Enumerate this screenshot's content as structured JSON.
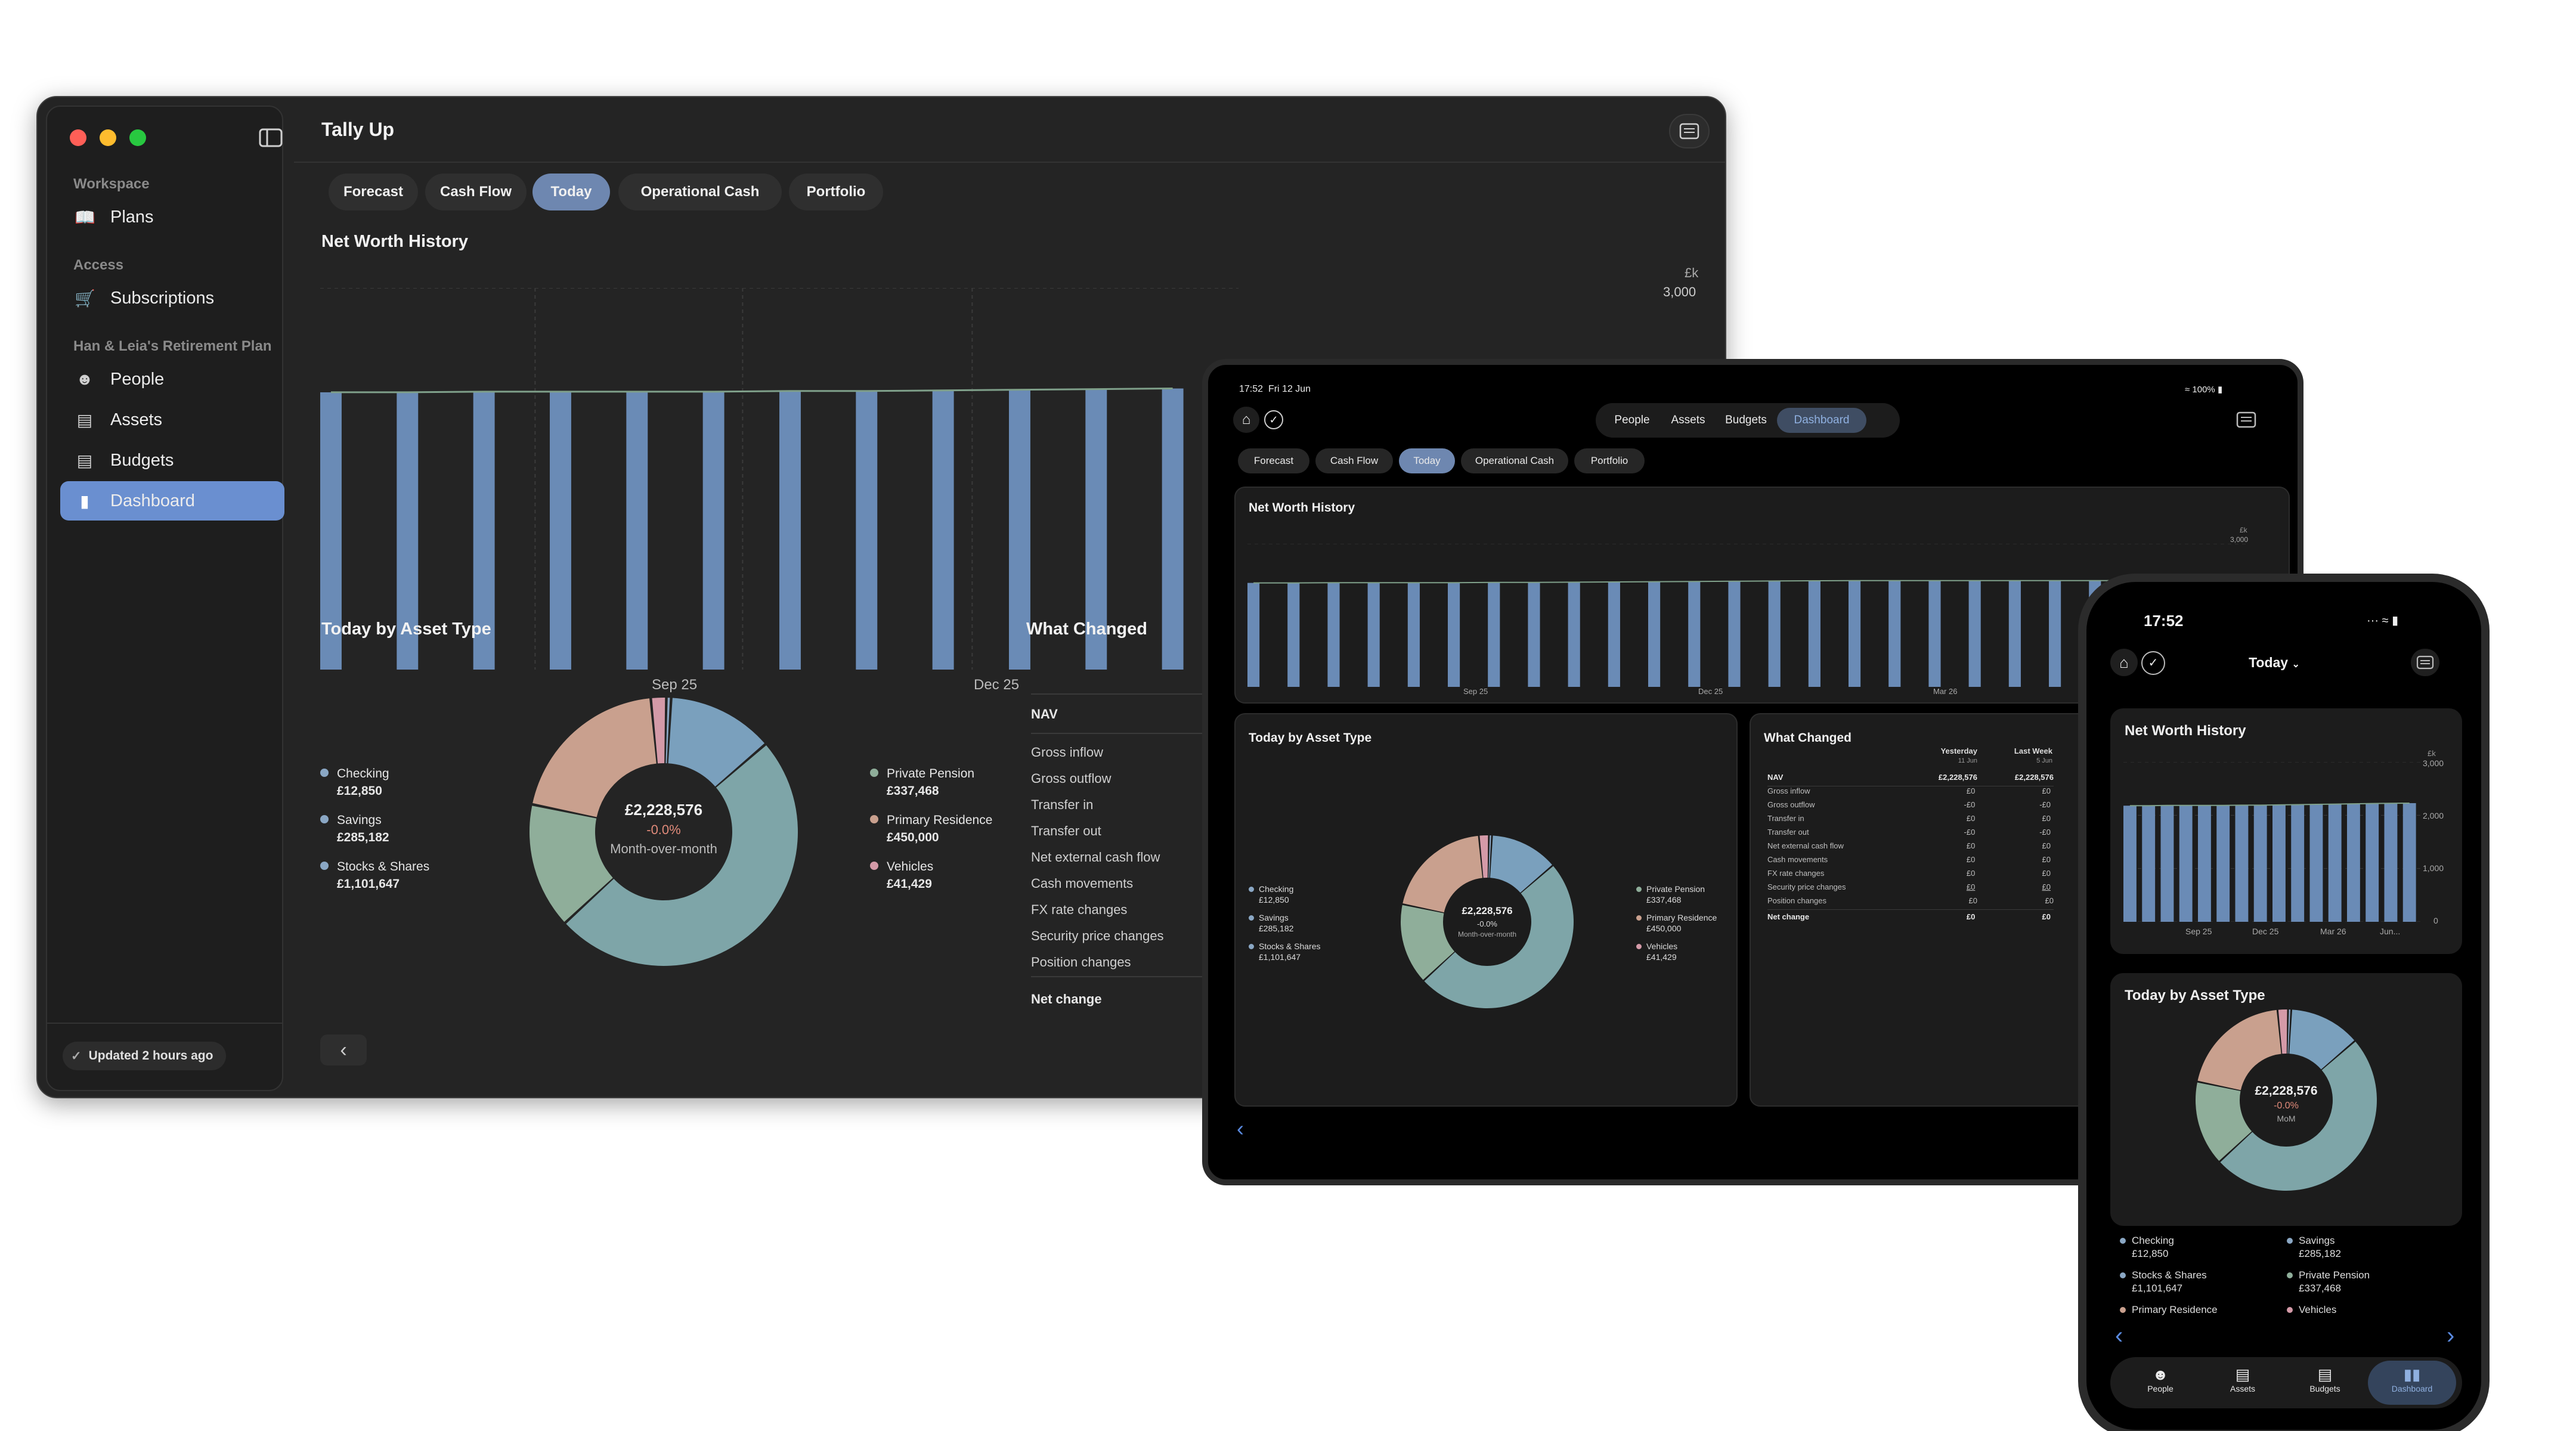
{
  "colors": {
    "bar": "#6a8bb6",
    "checking": "#8aa7c4",
    "savings": "#7ea5a8",
    "stocks": "#7ea5a8",
    "pension": "#8fae9a",
    "residence": "#c9a08e",
    "vehicles": "#d49aa8",
    "accent": "#6a8fd0"
  },
  "mac": {
    "title": "Tally Up",
    "sidebar": {
      "sections": [
        {
          "label": "Workspace",
          "items": [
            {
              "label": "Plans",
              "icon": "book-icon"
            }
          ]
        },
        {
          "label": "Access",
          "items": [
            {
              "label": "Subscriptions",
              "icon": "cart-icon"
            }
          ]
        },
        {
          "label": "Han & Leia's Retirement Plan",
          "items": [
            {
              "label": "People",
              "icon": "person-icon"
            },
            {
              "label": "Assets",
              "icon": "banknote-icon"
            },
            {
              "label": "Budgets",
              "icon": "document-icon"
            },
            {
              "label": "Dashboard",
              "icon": "chart-icon",
              "active": true
            }
          ]
        }
      ],
      "status": "Updated 2 hours ago"
    },
    "tabs": [
      "Forecast",
      "Cash Flow",
      "Today",
      "Operational Cash",
      "Portfolio"
    ],
    "active_tab": "Today",
    "net_worth": {
      "title": "Net Worth History",
      "unit": "£k",
      "ytick": "3,000",
      "xticks": [
        "Sep 25",
        "Dec 25"
      ]
    },
    "asset_type": {
      "title": "Today by Asset Type",
      "total": "£2,228,576",
      "change": "-0.0%",
      "caption": "Month-over-month",
      "legend_left": [
        {
          "name": "Checking",
          "value": "£12,850"
        },
        {
          "name": "Savings",
          "value": "£285,182"
        },
        {
          "name": "Stocks & Shares",
          "value": "£1,101,647"
        }
      ],
      "legend_right": [
        {
          "name": "Private Pension",
          "value": "£337,468"
        },
        {
          "name": "Primary Residence",
          "value": "£450,000"
        },
        {
          "name": "Vehicles",
          "value": "£41,429"
        }
      ]
    },
    "what_changed": {
      "title": "What Changed",
      "nav": "NAV",
      "rows": [
        "Gross inflow",
        "Gross outflow",
        "Transfer in",
        "Transfer out",
        "Net external cash flow",
        "Cash movements",
        "FX rate changes",
        "Security price changes",
        "Position changes"
      ],
      "net": "Net change"
    }
  },
  "ipad": {
    "time": "17:52",
    "date": "Fri 12 Jun",
    "battery": "100%",
    "segments": [
      "People",
      "Assets",
      "Budgets",
      "Dashboard"
    ],
    "active_segment": "Dashboard",
    "tabs": [
      "Forecast",
      "Cash Flow",
      "Today",
      "Operational Cash",
      "Portfolio"
    ],
    "active_tab": "Today",
    "net_worth": {
      "title": "Net Worth History",
      "unit": "£k",
      "ytick": "3,000",
      "xticks": [
        "Sep 25",
        "Dec 25",
        "Mar 26"
      ]
    },
    "asset_type": {
      "title": "Today by Asset Type",
      "total": "£2,228,576",
      "change": "-0.0%",
      "caption": "Month-over-month",
      "legend_left": [
        {
          "name": "Checking",
          "value": "£12,850"
        },
        {
          "name": "Savings",
          "value": "£285,182"
        },
        {
          "name": "Stocks & Shares",
          "value": "£1,101,647"
        }
      ],
      "legend_right": [
        {
          "name": "Private Pension",
          "value": "£337,468"
        },
        {
          "name": "Primary Residence",
          "value": "£450,000"
        },
        {
          "name": "Vehicles",
          "value": "£41,429"
        }
      ]
    },
    "what_changed": {
      "title": "What Changed",
      "col1": "Yesterday",
      "col1_sub": "11 Jun",
      "col2": "Last Week",
      "col2_sub": "5 Jun",
      "nav": {
        "label": "NAV",
        "v1": "£2,228,576",
        "v2": "£2,228,576"
      },
      "rows": [
        {
          "label": "Gross inflow",
          "v1": "£0",
          "v2": "£0"
        },
        {
          "label": "Gross outflow",
          "v1": "-£0",
          "v2": "-£0"
        },
        {
          "label": "Transfer in",
          "v1": "£0",
          "v2": "£0"
        },
        {
          "label": "Transfer out",
          "v1": "-£0",
          "v2": "-£0"
        },
        {
          "label": "Net external cash flow",
          "v1": "£0",
          "v2": "£0"
        },
        {
          "label": "Cash movements",
          "v1": "£0",
          "v2": "£0"
        },
        {
          "label": "FX rate changes",
          "v1": "£0",
          "v2": "£0"
        },
        {
          "label": "Security price changes",
          "v1": "£0",
          "v2": "£0"
        },
        {
          "label": "Position changes",
          "v1": "£0",
          "v2": "£0"
        }
      ],
      "net": {
        "label": "Net change",
        "v1": "£0",
        "v2": "£0"
      }
    }
  },
  "phone": {
    "time": "17:52",
    "title": "Today",
    "net_worth": {
      "title": "Net Worth History",
      "unit": "£k",
      "yticks": [
        "3,000",
        "2,000",
        "1,000",
        "0"
      ],
      "xticks": [
        "Sep 25",
        "Dec 25",
        "Mar 26",
        "Jun..."
      ]
    },
    "asset_type": {
      "title": "Today by Asset Type",
      "total": "£2,228,576",
      "change": "-0.0%",
      "caption": "MoM",
      "legend": [
        {
          "name": "Checking",
          "value": "£12,850"
        },
        {
          "name": "Savings",
          "value": "£285,182"
        },
        {
          "name": "Stocks & Shares",
          "value": "£1,101,647"
        },
        {
          "name": "Private Pension",
          "value": "£337,468"
        },
        {
          "name": "Primary Residence",
          "value": ""
        },
        {
          "name": "Vehicles",
          "value": ""
        }
      ]
    },
    "nav": [
      "People",
      "Assets",
      "Budgets",
      "Dashboard"
    ],
    "active_nav": "Dashboard"
  },
  "chart_data": [
    {
      "type": "bar",
      "title": "Net Worth History",
      "ylabel": "£k",
      "ylim": [
        0,
        3000
      ],
      "x_ticks": [
        "Sep 25",
        "Dec 25",
        "Mar 26"
      ],
      "values": [
        2180,
        2180,
        2185,
        2185,
        2185,
        2185,
        2190,
        2190,
        2195,
        2200,
        2205,
        2210,
        2215,
        2220,
        2225,
        2228
      ]
    },
    {
      "type": "pie",
      "title": "Today by Asset Type",
      "center_label": "£2,228,576",
      "labels": [
        "Checking",
        "Savings",
        "Stocks & Shares",
        "Private Pension",
        "Primary Residence",
        "Vehicles"
      ],
      "values": [
        12850,
        285182,
        1101647,
        337468,
        450000,
        41429
      ]
    }
  ]
}
